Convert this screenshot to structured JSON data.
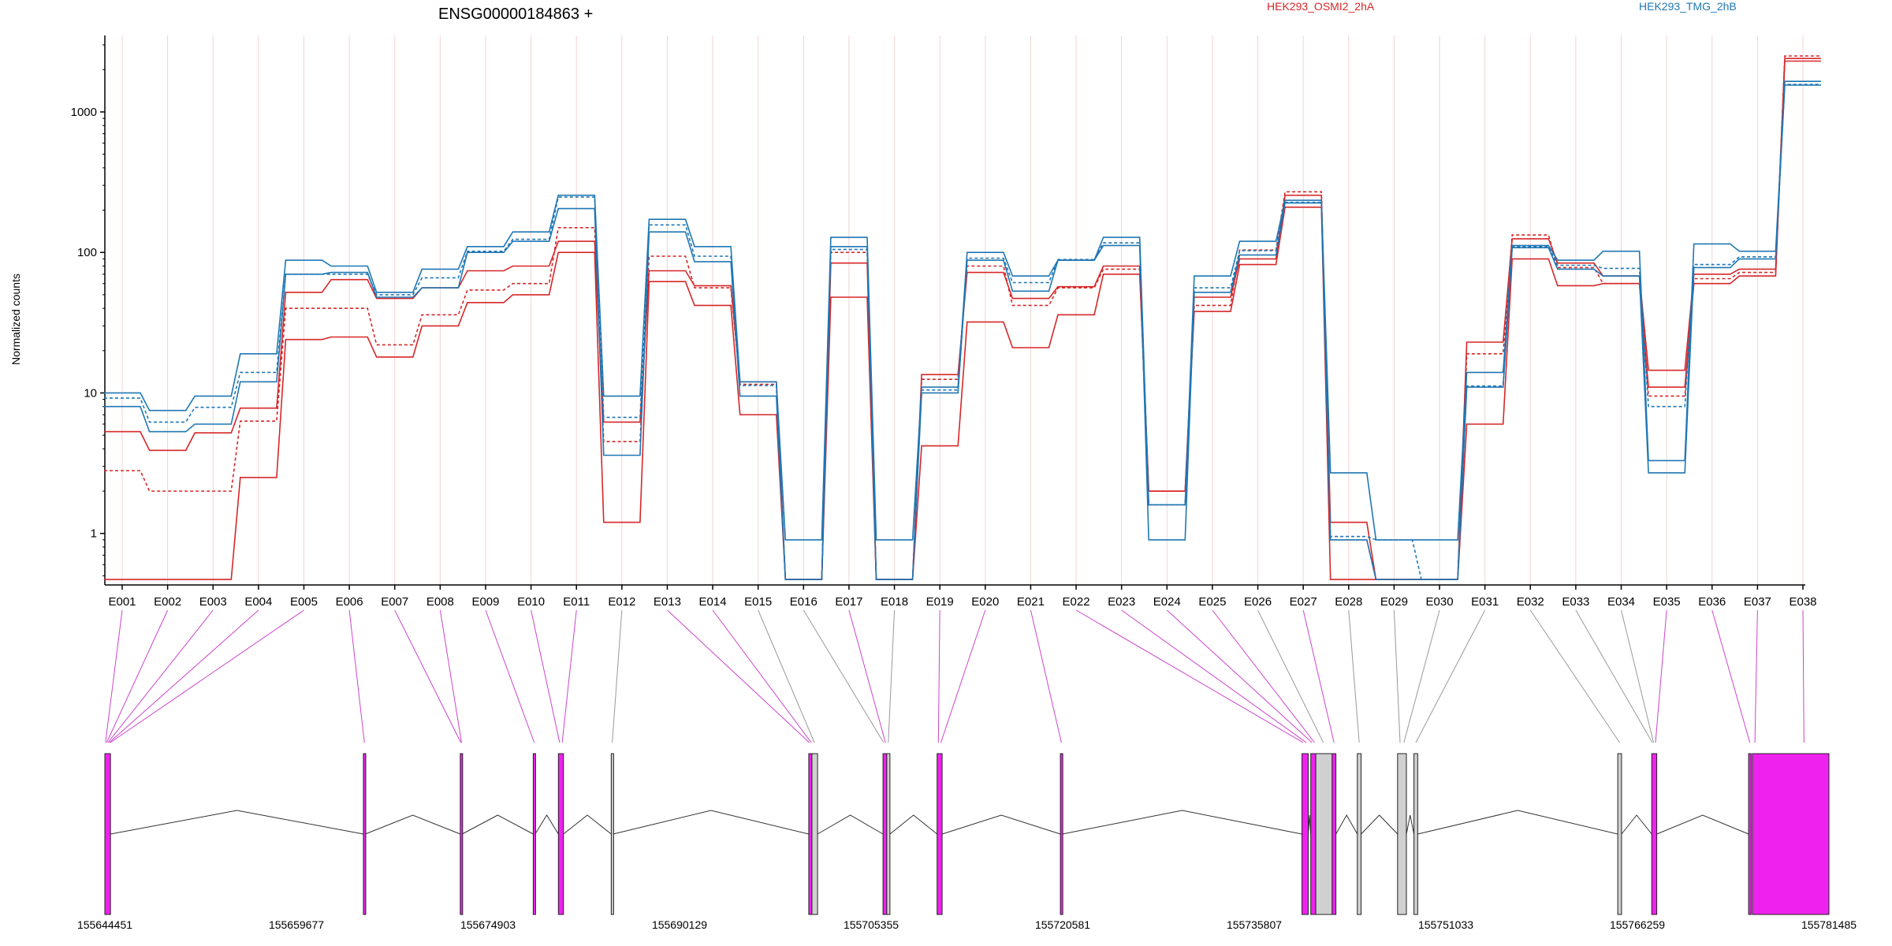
{
  "chart_data": {
    "type": "line",
    "title": "ENSG00000184863 +",
    "ylabel": "Normalized counts",
    "yscale": "log",
    "yticks": [
      1,
      10,
      100,
      1000
    ],
    "ylim": [
      0.43,
      3500
    ],
    "legend": [
      {
        "name": "HEK293_OSMI2_2hA",
        "color": "#d62728"
      },
      {
        "name": "HEK293_TMG_2hB",
        "color": "#1f77b4"
      }
    ],
    "categories": [
      "E001",
      "E002",
      "E003",
      "E004",
      "E005",
      "E006",
      "E007",
      "E008",
      "E009",
      "E010",
      "E011",
      "E012",
      "E013",
      "E014",
      "E015",
      "E016",
      "E017",
      "E018",
      "E019",
      "E020",
      "E021",
      "E022",
      "E023",
      "E024",
      "E025",
      "E026",
      "E027",
      "E028",
      "E029",
      "E030",
      "E031",
      "E032",
      "E033",
      "E034",
      "E035",
      "E036",
      "E037",
      "E038"
    ],
    "series": [
      {
        "group": "HEK293_OSMI2_2hA",
        "color": "#d62728",
        "dashed": false,
        "values": [
          5.3,
          3.9,
          5.2,
          7.8,
          52,
          64,
          47,
          56,
          74,
          80,
          120,
          6.2,
          74,
          58,
          12,
          0.47,
          84,
          0.47,
          13.5,
          72,
          47,
          57,
          80,
          2.0,
          48,
          90,
          255,
          1.2,
          0.47,
          0.47,
          23,
          125,
          84,
          68,
          14.5,
          70,
          76,
          2400
        ]
      },
      {
        "group": "HEK293_OSMI2_2hA",
        "color": "#d62728",
        "dashed": false,
        "values": [
          0.47,
          0.47,
          0.47,
          2.5,
          24,
          25,
          18,
          30,
          44,
          50,
          100,
          1.2,
          62,
          42,
          7,
          0.47,
          48,
          0.47,
          4.2,
          32,
          21,
          36,
          70,
          2.0,
          38,
          82,
          210,
          0.47,
          0.47,
          0.47,
          6,
          90,
          58,
          60,
          11,
          60,
          68,
          2300
        ]
      },
      {
        "group": "HEK293_OSMI2_2hA",
        "color": "#d62728",
        "dashed": true,
        "values": [
          2.8,
          2.0,
          2.0,
          6.3,
          40,
          40,
          22,
          36,
          54,
          60,
          150,
          4.5,
          94,
          56,
          11.5,
          0.47,
          100,
          0.47,
          12.5,
          80,
          42,
          56,
          76,
          1.6,
          42,
          104,
          270,
          0.9,
          0.47,
          0.47,
          19,
          133,
          78,
          60,
          9.5,
          65,
          72,
          2500
        ]
      },
      {
        "group": "HEK293_TMG_2hB",
        "color": "#1f77b4",
        "dashed": false,
        "values": [
          10,
          7.5,
          9.5,
          19,
          88,
          80,
          52,
          76,
          110,
          140,
          255,
          9.5,
          172,
          110,
          12,
          0.9,
          128,
          0.9,
          11,
          100,
          68,
          88,
          128,
          1.6,
          68,
          120,
          235,
          2.7,
          0.9,
          0.9,
          14,
          112,
          88,
          102,
          3.3,
          115,
          102,
          1650
        ]
      },
      {
        "group": "HEK293_TMG_2hB",
        "color": "#1f77b4",
        "dashed": false,
        "values": [
          8,
          5.3,
          6,
          12,
          70,
          72,
          48,
          56,
          100,
          120,
          205,
          3.6,
          140,
          86,
          9.5,
          0.47,
          110,
          0.47,
          10,
          88,
          53,
          88,
          112,
          0.9,
          52,
          96,
          225,
          0.9,
          0.47,
          0.47,
          11,
          108,
          76,
          68,
          2.7,
          78,
          90,
          1550
        ]
      },
      {
        "group": "HEK293_TMG_2hB",
        "color": "#1f77b4",
        "dashed": true,
        "values": [
          9.2,
          6.2,
          7.9,
          14,
          70,
          70,
          50,
          66,
          102,
          124,
          248,
          6.7,
          157,
          94,
          11.3,
          0.47,
          105,
          0.47,
          10.5,
          91,
          61,
          89,
          117,
          1.6,
          56,
          103,
          227,
          0.95,
          0.9,
          0.47,
          11.2,
          110,
          81,
          77,
          8,
          82,
          93,
          1570
        ]
      }
    ],
    "genomic_axis": {
      "tick_labels": [
        "155644451",
        "155659677",
        "155674903",
        "155690129",
        "155705355",
        "155720581",
        "155735807",
        "155751033",
        "155766259",
        "155781485"
      ],
      "range": [
        155644451,
        155781485
      ]
    },
    "exons": [
      {
        "start": 155644451,
        "end": 155644900,
        "color": "#ee22ee"
      },
      {
        "start": 155665000,
        "end": 155665150,
        "color": "#ee22ee"
      },
      {
        "start": 155672700,
        "end": 155672850,
        "color": "#ee22ee"
      },
      {
        "start": 155678500,
        "end": 155678650,
        "color": "#ee22ee"
      },
      {
        "start": 155680500,
        "end": 155680900,
        "color": "#ee22ee"
      },
      {
        "start": 155684700,
        "end": 155684850,
        "color": "#d0d0d0"
      },
      {
        "start": 155700400,
        "end": 155700650,
        "color": "#ee22ee"
      },
      {
        "start": 155700650,
        "end": 155701100,
        "color": "#d0d0d0"
      },
      {
        "start": 155706300,
        "end": 155706600,
        "color": "#ee22ee"
      },
      {
        "start": 155706600,
        "end": 155706850,
        "color": "#d0d0d0"
      },
      {
        "start": 155710600,
        "end": 155711000,
        "color": "#ee22ee"
      },
      {
        "start": 155720400,
        "end": 155720550,
        "color": "#ee22ee"
      },
      {
        "start": 155739600,
        "end": 155740100,
        "color": "#ee22ee"
      },
      {
        "start": 155740300,
        "end": 155740700,
        "color": "#ee22ee"
      },
      {
        "start": 155740700,
        "end": 155742000,
        "color": "#d0d0d0"
      },
      {
        "start": 155742000,
        "end": 155742300,
        "color": "#ee22ee"
      },
      {
        "start": 155744000,
        "end": 155744300,
        "color": "#d0d0d0"
      },
      {
        "start": 155747200,
        "end": 155747900,
        "color": "#d0d0d0"
      },
      {
        "start": 155748500,
        "end": 155748800,
        "color": "#d0d0d0"
      },
      {
        "start": 155764700,
        "end": 155765000,
        "color": "#d0d0d0"
      },
      {
        "start": 155767400,
        "end": 155767800,
        "color": "#ee22ee"
      },
      {
        "start": 155775100,
        "end": 155775300,
        "color": "#ee22ee"
      },
      {
        "start": 155775400,
        "end": 155781485,
        "color": "#ee22ee"
      }
    ],
    "exon_links": [
      {
        "bin": "E001",
        "pos": 155644500,
        "color": "#cc44cc"
      },
      {
        "bin": "E002",
        "pos": 155644600,
        "color": "#cc44cc"
      },
      {
        "bin": "E003",
        "pos": 155644700,
        "color": "#cc44cc"
      },
      {
        "bin": "E004",
        "pos": 155644800,
        "color": "#cc44cc"
      },
      {
        "bin": "E005",
        "pos": 155644880,
        "color": "#cc44cc"
      },
      {
        "bin": "E006",
        "pos": 155665080,
        "color": "#cc44cc"
      },
      {
        "bin": "E007",
        "pos": 155672750,
        "color": "#cc44cc"
      },
      {
        "bin": "E008",
        "pos": 155672800,
        "color": "#cc44cc"
      },
      {
        "bin": "E009",
        "pos": 155678580,
        "color": "#cc44cc"
      },
      {
        "bin": "E010",
        "pos": 155680600,
        "color": "#cc44cc"
      },
      {
        "bin": "E011",
        "pos": 155680800,
        "color": "#cc44cc"
      },
      {
        "bin": "E012",
        "pos": 155684780,
        "color": "#999999"
      },
      {
        "bin": "E013",
        "pos": 155700450,
        "color": "#cc44cc"
      },
      {
        "bin": "E014",
        "pos": 155700600,
        "color": "#cc44cc"
      },
      {
        "bin": "E015",
        "pos": 155700850,
        "color": "#999999"
      },
      {
        "bin": "E016",
        "pos": 155706350,
        "color": "#999999"
      },
      {
        "bin": "E017",
        "pos": 155706500,
        "color": "#cc44cc"
      },
      {
        "bin": "E018",
        "pos": 155706720,
        "color": "#999999"
      },
      {
        "bin": "E019",
        "pos": 155710700,
        "color": "#cc44cc"
      },
      {
        "bin": "E020",
        "pos": 155710900,
        "color": "#cc44cc"
      },
      {
        "bin": "E021",
        "pos": 155720480,
        "color": "#cc44cc"
      },
      {
        "bin": "E022",
        "pos": 155739700,
        "color": "#cc44cc"
      },
      {
        "bin": "E023",
        "pos": 155739950,
        "color": "#cc44cc"
      },
      {
        "bin": "E024",
        "pos": 155740400,
        "color": "#cc44cc"
      },
      {
        "bin": "E025",
        "pos": 155740600,
        "color": "#cc44cc"
      },
      {
        "bin": "E026",
        "pos": 155741300,
        "color": "#999999"
      },
      {
        "bin": "E027",
        "pos": 155742150,
        "color": "#cc44cc"
      },
      {
        "bin": "E028",
        "pos": 155744150,
        "color": "#999999"
      },
      {
        "bin": "E029",
        "pos": 155747400,
        "color": "#999999"
      },
      {
        "bin": "E030",
        "pos": 155747700,
        "color": "#999999"
      },
      {
        "bin": "E031",
        "pos": 155748650,
        "color": "#999999"
      },
      {
        "bin": "E032",
        "pos": 155764850,
        "color": "#999999"
      },
      {
        "bin": "E033",
        "pos": 155767450,
        "color": "#999999"
      },
      {
        "bin": "E034",
        "pos": 155767550,
        "color": "#999999"
      },
      {
        "bin": "E035",
        "pos": 155767700,
        "color": "#cc44cc"
      },
      {
        "bin": "E036",
        "pos": 155775200,
        "color": "#cc44cc"
      },
      {
        "bin": "E037",
        "pos": 155775600,
        "color": "#cc44cc"
      },
      {
        "bin": "E038",
        "pos": 155779500,
        "color": "#cc44cc"
      }
    ]
  }
}
